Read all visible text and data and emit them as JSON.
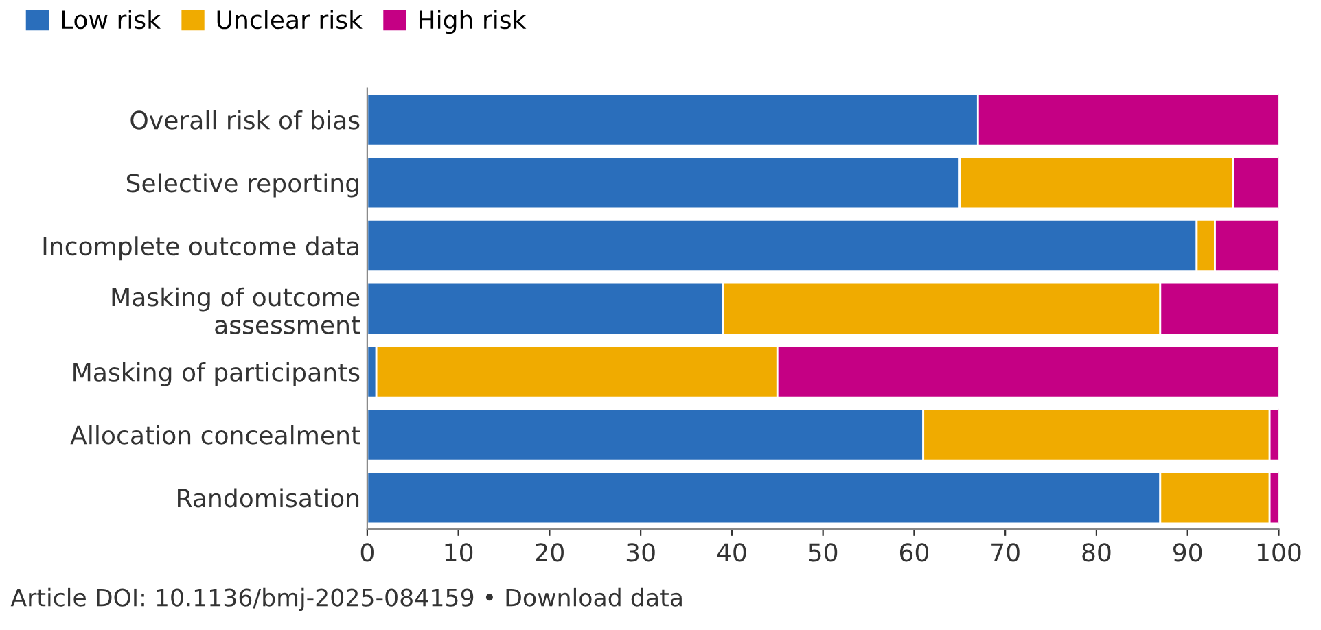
{
  "chart_data": {
    "type": "bar",
    "orientation": "horizontal",
    "stacked": true,
    "categories": [
      "Overall risk of bias",
      "Selective reporting",
      "Incomplete outcome data",
      "Masking of outcome\nassessment",
      "Masking of participants",
      "Allocation concealment",
      "Randomisation"
    ],
    "series": [
      {
        "name": "Low risk",
        "color": "#2a6ebb",
        "values": [
          67,
          65,
          91,
          39,
          1,
          61,
          87
        ]
      },
      {
        "name": "Unclear risk",
        "color": "#f0ab00",
        "values": [
          0,
          30,
          2,
          48,
          44,
          38,
          12
        ]
      },
      {
        "name": "High risk",
        "color": "#c50084",
        "values": [
          33,
          5,
          7,
          13,
          55,
          1,
          1
        ]
      }
    ],
    "xlim": [
      0,
      100
    ],
    "xticks": [
      0,
      10,
      20,
      30,
      40,
      50,
      60,
      70,
      80,
      90,
      100
    ],
    "grid": false,
    "legend": "top left",
    "annotations": [
      "Article DOI: 10.1136/bmj-2025-084159 • Download data"
    ]
  }
}
